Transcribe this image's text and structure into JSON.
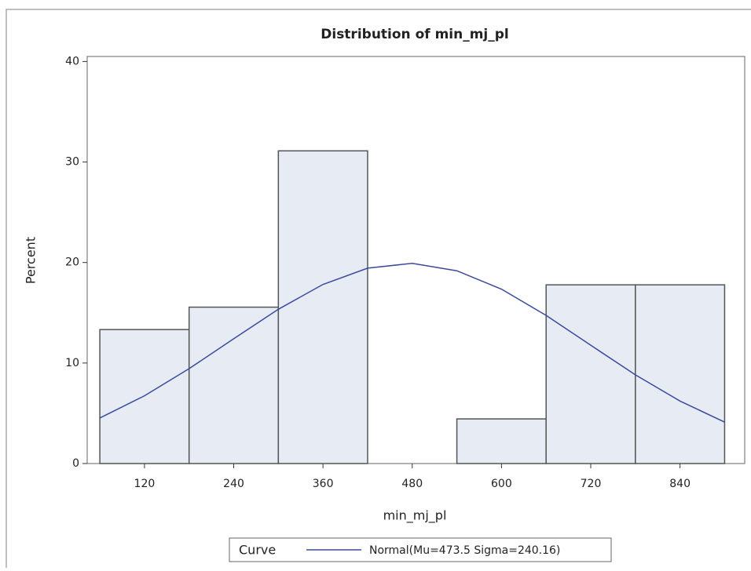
{
  "chart_data": {
    "type": "histogram",
    "title": "Distribution of min_mj_pl",
    "x_label": "min_mj_pl",
    "y_label": "Percent",
    "bins": [
      60,
      180,
      300,
      420,
      540,
      660,
      780,
      900
    ],
    "values": [
      13.33,
      15.56,
      31.11,
      0,
      4.44,
      17.78,
      17.78
    ],
    "color": "#e6ebf4",
    "edge_color": "#555555",
    "xlim": [
      43,
      927
    ],
    "ylim": [
      0,
      40.5
    ],
    "xticks": [
      120,
      240,
      360,
      480,
      600,
      720,
      840
    ],
    "yticks": [
      0,
      10,
      20,
      30,
      40
    ],
    "legend_title": "Curve",
    "series": [
      {
        "name": "Normal(Mu=473.5 Sigma=240.16)",
        "color": "#3b4a9c",
        "x": [
          60,
          120,
          180,
          240,
          300,
          360,
          420,
          480,
          540,
          600,
          660,
          720,
          780,
          840,
          900
        ],
        "values": [
          4.53,
          6.74,
          9.44,
          12.42,
          15.35,
          17.82,
          19.44,
          19.92,
          19.18,
          17.35,
          14.74,
          11.77,
          8.83,
          6.22,
          4.12
        ]
      }
    ]
  }
}
